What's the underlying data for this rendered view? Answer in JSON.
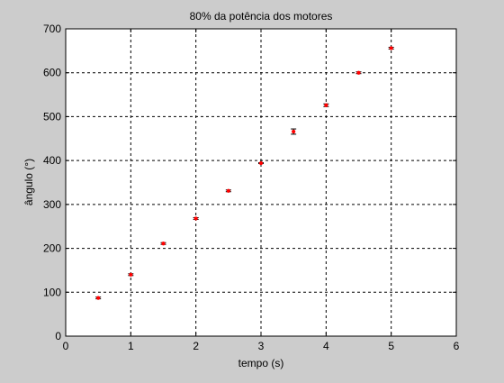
{
  "chart_data": {
    "type": "scatter",
    "title": "80% da potência dos motores",
    "xlabel": "tempo (s)",
    "ylabel": "ângulo (°)",
    "xlim": [
      0,
      6
    ],
    "ylim": [
      0,
      700
    ],
    "x_ticks": [
      "0",
      "1",
      "2",
      "3",
      "4",
      "5",
      "6"
    ],
    "y_ticks": [
      "0",
      "100",
      "200",
      "300",
      "400",
      "500",
      "600",
      "700"
    ],
    "grid": true,
    "series": [
      {
        "x": [
          0.5,
          1.0,
          1.5,
          2.0,
          2.5,
          3.0,
          3.5,
          4.0,
          4.5,
          5.0
        ],
        "values": [
          87,
          140,
          211,
          268,
          331,
          394,
          466,
          526,
          600,
          656
        ],
        "error": [
          2,
          2,
          2,
          2,
          2,
          1,
          6,
          3,
          2,
          2
        ]
      }
    ],
    "colors": {
      "marker": "#ff0000",
      "errorbar": "#000000",
      "background": "#cccccc",
      "plot_area": "#ffffff"
    }
  }
}
